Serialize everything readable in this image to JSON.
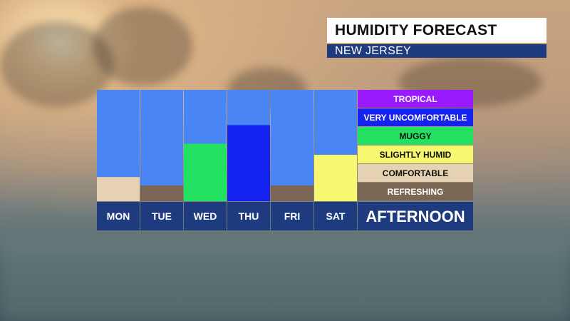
{
  "header": {
    "title": "HUMIDITY FORECAST",
    "subtitle": "NEW JERSEY"
  },
  "colors": {
    "column_background": "#4a85f5",
    "day_bar_background": "#1f3b80",
    "title_background": "#ffffff",
    "subtitle_background": "#1f3b80"
  },
  "chart_data": {
    "type": "bar",
    "categories": [
      "MON",
      "TUE",
      "WED",
      "THU",
      "FRI",
      "SAT"
    ],
    "category_axis_label": "AFTERNOON",
    "levels": [
      {
        "label": "TROPICAL",
        "color": "#9a1aff",
        "text_color": "#ffffff"
      },
      {
        "label": "VERY UNCOMFORTABLE",
        "color": "#1422f0",
        "text_color": "#ffffff"
      },
      {
        "label": "MUGGY",
        "color": "#22e060",
        "text_color": "#111111"
      },
      {
        "label": "SLIGHTLY HUMID",
        "color": "#f8f870",
        "text_color": "#111111"
      },
      {
        "label": "COMFORTABLE",
        "color": "#e6d2b2",
        "text_color": "#111111"
      },
      {
        "label": "REFRESHING",
        "color": "#7b6653",
        "text_color": "#ffffff"
      }
    ],
    "values": [
      1.3,
      0.85,
      3.1,
      4.1,
      0.85,
      2.5
    ],
    "value_levels": [
      "COMFORTABLE",
      "REFRESHING",
      "MUGGY",
      "VERY UNCOMFORTABLE",
      "REFRESHING",
      "SLIGHTLY HUMID"
    ],
    "ylim": [
      0,
      6
    ],
    "grid": false,
    "legend_placement": "right"
  }
}
